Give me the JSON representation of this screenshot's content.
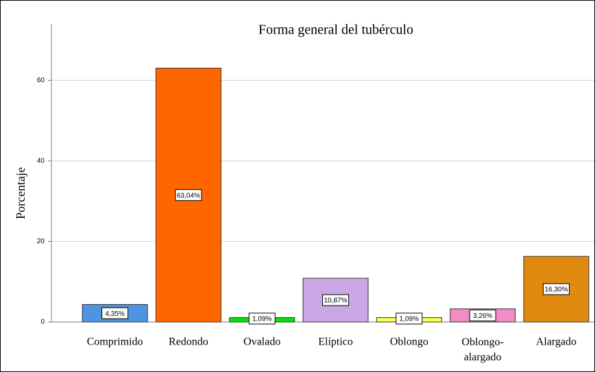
{
  "chart_data": {
    "type": "bar",
    "title": "Forma general del tubérculo",
    "y_label": "Porcentaje",
    "categories": [
      "Comprimido",
      "Redondo",
      "Ovalado",
      "Elíptico",
      "Oblongo",
      "Oblongo-alargado",
      "Alargado"
    ],
    "values": [
      4.35,
      63.04,
      1.09,
      10.87,
      1.09,
      3.26,
      16.3
    ],
    "value_labels": [
      "4,35%",
      "63,04%",
      "1,09%",
      "10,87%",
      "1,09%",
      "3,26%",
      "16,30%"
    ],
    "colors": [
      "#4f94e0",
      "#ff6600",
      "#00e600",
      "#c9a6e4",
      "#ffff4d",
      "#f28cc4",
      "#e08a10"
    ],
    "ylim": [
      0,
      74
    ],
    "yticks": [
      0,
      20,
      40,
      60
    ],
    "grid": true
  }
}
